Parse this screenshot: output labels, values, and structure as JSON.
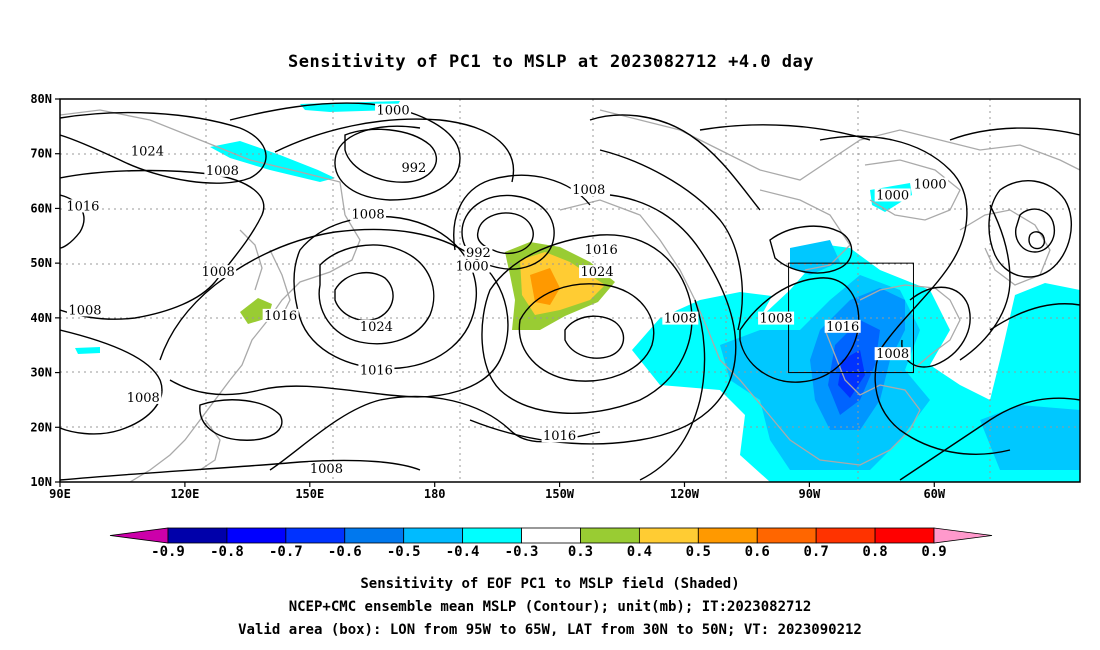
{
  "title": "Sensitivity of PC1 to MSLP at 2023082712 +4.0 day",
  "map": {
    "lon_ticks": [
      "90E",
      "120E",
      "150E",
      "180",
      "150W",
      "120W",
      "90W",
      "60W"
    ],
    "lat_ticks": [
      "80N",
      "70N",
      "60N",
      "50N",
      "40N",
      "30N",
      "20N",
      "10N"
    ],
    "contour_labels": [
      {
        "text": "1024",
        "lon": 111,
        "lat": 70
      },
      {
        "text": "1008",
        "lon": 129,
        "lat": 66.5
      },
      {
        "text": "1016",
        "lon": 95.5,
        "lat": 60
      },
      {
        "text": "1008",
        "lon": 128,
        "lat": 48
      },
      {
        "text": "1008",
        "lon": 96,
        "lat": 41
      },
      {
        "text": "1008",
        "lon": 110,
        "lat": 25
      },
      {
        "text": "1008",
        "lon": 154,
        "lat": 12
      },
      {
        "text": "1016",
        "lon": 143,
        "lat": 40
      },
      {
        "text": "1024",
        "lon": 166,
        "lat": 38
      },
      {
        "text": "1016",
        "lon": 166,
        "lat": 30
      },
      {
        "text": "1000",
        "lon": 170,
        "lat": 77.5
      },
      {
        "text": "992",
        "lon": 175,
        "lat": 67
      },
      {
        "text": "1008",
        "lon": 164,
        "lat": 58.5
      },
      {
        "text": "992",
        "lon": 190.5,
        "lat": 51.5
      },
      {
        "text": "1000",
        "lon": 189,
        "lat": 49
      },
      {
        "text": "1008",
        "lon": 217,
        "lat": 63
      },
      {
        "text": "1016",
        "lon": 220,
        "lat": 52
      },
      {
        "text": "1024",
        "lon": 219,
        "lat": 48
      },
      {
        "text": "1016",
        "lon": 210,
        "lat": 18
      },
      {
        "text": "1008",
        "lon": 239,
        "lat": 39.5
      },
      {
        "text": "1008",
        "lon": 262,
        "lat": 39.5
      },
      {
        "text": "1016",
        "lon": 278,
        "lat": 38
      },
      {
        "text": "1008",
        "lon": 290,
        "lat": 33
      },
      {
        "text": "1000",
        "lon": 290,
        "lat": 62
      },
      {
        "text": "1000",
        "lon": 299,
        "lat": 64
      }
    ],
    "valid_box": {
      "lon_west": 265,
      "lon_east": 295,
      "lat_south": 30,
      "lat_north": 50
    },
    "shading_colors": {
      "neg_0_3": "#00ffff",
      "neg_0_4": "#00c8ff",
      "neg_0_5": "#0096ff",
      "neg_0_6": "#0064ff",
      "neg_0_7": "#0032ff",
      "pos_0_3": "#99cc33",
      "pos_0_4": "#ffcc33",
      "pos_0_5": "#ff9900"
    }
  },
  "colorbar": {
    "labels": [
      "-0.9",
      "-0.8",
      "-0.7",
      "-0.6",
      "-0.5",
      "-0.4",
      "-0.3",
      "0.3",
      "0.4",
      "0.5",
      "0.6",
      "0.7",
      "0.8",
      "0.9"
    ],
    "colors": [
      "#cc00aa",
      "#0000aa",
      "#0000ff",
      "#0032ff",
      "#0078ee",
      "#00bbff",
      "#00ffff",
      "#ffffff",
      "#99cc33",
      "#ffcc33",
      "#ff9900",
      "#ff6600",
      "#ff3300",
      "#ff0000",
      "#ff99cc"
    ]
  },
  "captions": [
    "Sensitivity of EOF PC1 to MSLP field (Shaded)",
    "NCEP+CMC ensemble mean MSLP (Contour); unit(mb); IT:2023082712",
    "Valid area (box): LON from 95W to 65W, LAT from 30N to 50N; VT: 2023090212"
  ]
}
